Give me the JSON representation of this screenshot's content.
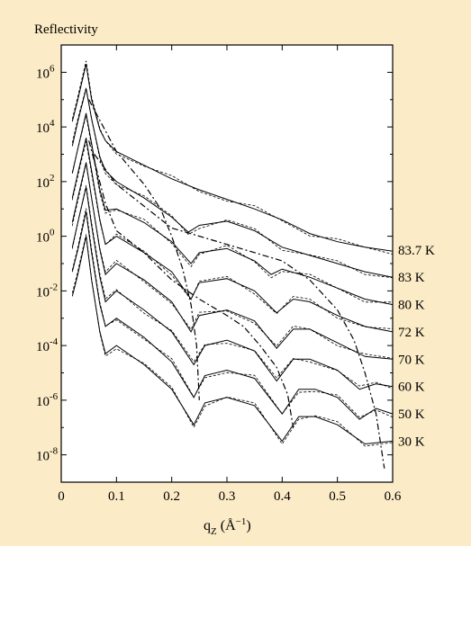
{
  "colors": {
    "panel_background": "#FBEBC6",
    "plot_background": "#FFFFFF",
    "ink": "#000000"
  },
  "chart_data": {
    "type": "line",
    "title": "Reflectivity",
    "xlabel": "q",
    "xlabel_subscript": "Z",
    "xlabel_units": " (Å",
    "xlabel_units_sup": "−1",
    "xlabel_units_close": ")",
    "xlim": [
      0,
      0.6
    ],
    "ylim_log10": [
      -9,
      7
    ],
    "yscale": "log",
    "grid": false,
    "x_ticks": [
      {
        "value": 0,
        "label": "0"
      },
      {
        "value": 0.1,
        "label": "0.1"
      },
      {
        "value": 0.2,
        "label": "0.2"
      },
      {
        "value": 0.3,
        "label": "0.3"
      },
      {
        "value": 0.4,
        "label": "0.4"
      },
      {
        "value": 0.5,
        "label": "0.5"
      },
      {
        "value": 0.6,
        "label": "0.6"
      }
    ],
    "y_ticks": [
      {
        "exp": 6,
        "base": "10",
        "sup": "6"
      },
      {
        "exp": 4,
        "base": "10",
        "sup": "4"
      },
      {
        "exp": 2,
        "base": "10",
        "sup": "2"
      },
      {
        "exp": 0,
        "base": "10",
        "sup": "0"
      },
      {
        "exp": -2,
        "base": "10",
        "sup": "-2"
      },
      {
        "exp": -4,
        "base": "10",
        "sup": "-4"
      },
      {
        "exp": -6,
        "base": "10",
        "sup": "-6"
      },
      {
        "exp": -8,
        "base": "10",
        "sup": "-8"
      }
    ],
    "series": [
      {
        "name": "83.7 K",
        "label_log_y": -0.5,
        "points": [
          [
            0.02,
            4.2
          ],
          [
            0.03,
            5.0
          ],
          [
            0.045,
            6.3
          ],
          [
            0.055,
            5.0
          ],
          [
            0.07,
            3.9
          ],
          [
            0.08,
            3.5
          ],
          [
            0.1,
            3.1
          ],
          [
            0.15,
            2.6
          ],
          [
            0.2,
            2.1
          ],
          [
            0.25,
            1.7
          ],
          [
            0.3,
            1.35
          ],
          [
            0.35,
            1.0
          ],
          [
            0.4,
            0.6
          ],
          [
            0.45,
            0.1
          ],
          [
            0.5,
            -0.2
          ],
          [
            0.55,
            -0.4
          ],
          [
            0.6,
            -0.55
          ]
        ]
      },
      {
        "name": "83 K",
        "label_log_y": -1.5,
        "points": [
          [
            0.02,
            3.3
          ],
          [
            0.03,
            4.2
          ],
          [
            0.045,
            5.4
          ],
          [
            0.055,
            4.3
          ],
          [
            0.07,
            2.9
          ],
          [
            0.08,
            2.4
          ],
          [
            0.1,
            2.0
          ],
          [
            0.15,
            1.4
          ],
          [
            0.2,
            0.7
          ],
          [
            0.23,
            0.15
          ],
          [
            0.25,
            0.4
          ],
          [
            0.3,
            0.55
          ],
          [
            0.35,
            0.2
          ],
          [
            0.4,
            -0.4
          ],
          [
            0.45,
            -0.7
          ],
          [
            0.5,
            -1.0
          ],
          [
            0.55,
            -1.3
          ],
          [
            0.6,
            -1.5
          ]
        ]
      },
      {
        "name": "80 K",
        "label_log_y": -2.5,
        "points": [
          [
            0.02,
            2.3
          ],
          [
            0.03,
            3.2
          ],
          [
            0.045,
            4.5
          ],
          [
            0.055,
            3.4
          ],
          [
            0.07,
            1.7
          ],
          [
            0.08,
            0.95
          ],
          [
            0.1,
            1.0
          ],
          [
            0.15,
            0.5
          ],
          [
            0.2,
            -0.2
          ],
          [
            0.235,
            -1.0
          ],
          [
            0.25,
            -0.6
          ],
          [
            0.3,
            -0.45
          ],
          [
            0.35,
            -0.9
          ],
          [
            0.38,
            -1.4
          ],
          [
            0.4,
            -1.2
          ],
          [
            0.45,
            -1.5
          ],
          [
            0.5,
            -1.9
          ],
          [
            0.55,
            -2.3
          ],
          [
            0.6,
            -2.5
          ]
        ]
      },
      {
        "name": "72 K",
        "label_log_y": -3.5,
        "points": [
          [
            0.02,
            1.4
          ],
          [
            0.03,
            2.3
          ],
          [
            0.045,
            3.6
          ],
          [
            0.055,
            2.4
          ],
          [
            0.07,
            0.6
          ],
          [
            0.08,
            -0.3
          ],
          [
            0.1,
            0.0
          ],
          [
            0.15,
            -0.6
          ],
          [
            0.2,
            -1.3
          ],
          [
            0.235,
            -2.3
          ],
          [
            0.25,
            -1.7
          ],
          [
            0.3,
            -1.55
          ],
          [
            0.35,
            -2.0
          ],
          [
            0.39,
            -2.8
          ],
          [
            0.42,
            -2.3
          ],
          [
            0.45,
            -2.4
          ],
          [
            0.5,
            -2.9
          ],
          [
            0.55,
            -3.3
          ],
          [
            0.6,
            -3.5
          ]
        ]
      },
      {
        "name": "70 K",
        "label_log_y": -4.5,
        "points": [
          [
            0.02,
            0.5
          ],
          [
            0.03,
            1.4
          ],
          [
            0.045,
            2.7
          ],
          [
            0.055,
            1.4
          ],
          [
            0.07,
            -0.5
          ],
          [
            0.08,
            -1.4
          ],
          [
            0.1,
            -1.0
          ],
          [
            0.15,
            -1.6
          ],
          [
            0.2,
            -2.4
          ],
          [
            0.235,
            -3.5
          ],
          [
            0.25,
            -2.9
          ],
          [
            0.3,
            -2.7
          ],
          [
            0.35,
            -3.1
          ],
          [
            0.39,
            -4.1
          ],
          [
            0.42,
            -3.4
          ],
          [
            0.45,
            -3.4
          ],
          [
            0.5,
            -3.9
          ],
          [
            0.55,
            -4.4
          ],
          [
            0.6,
            -4.5
          ]
        ]
      },
      {
        "name": "60 K",
        "label_log_y": -5.5,
        "points": [
          [
            0.02,
            -0.4
          ],
          [
            0.03,
            0.5
          ],
          [
            0.045,
            1.8
          ],
          [
            0.055,
            0.4
          ],
          [
            0.07,
            -1.5
          ],
          [
            0.08,
            -2.4
          ],
          [
            0.1,
            -2.0
          ],
          [
            0.15,
            -2.7
          ],
          [
            0.2,
            -3.5
          ],
          [
            0.24,
            -4.7
          ],
          [
            0.26,
            -4.0
          ],
          [
            0.3,
            -3.8
          ],
          [
            0.35,
            -4.2
          ],
          [
            0.39,
            -5.3
          ],
          [
            0.42,
            -4.5
          ],
          [
            0.45,
            -4.5
          ],
          [
            0.5,
            -4.9
          ],
          [
            0.54,
            -5.6
          ],
          [
            0.57,
            -5.4
          ],
          [
            0.6,
            -5.5
          ]
        ]
      },
      {
        "name": "50 K",
        "label_log_y": -6.5,
        "points": [
          [
            0.02,
            -1.3
          ],
          [
            0.03,
            -0.5
          ],
          [
            0.045,
            0.9
          ],
          [
            0.055,
            -0.6
          ],
          [
            0.07,
            -2.5
          ],
          [
            0.08,
            -3.3
          ],
          [
            0.1,
            -3.0
          ],
          [
            0.15,
            -3.7
          ],
          [
            0.2,
            -4.6
          ],
          [
            0.24,
            -5.9
          ],
          [
            0.26,
            -5.1
          ],
          [
            0.3,
            -4.9
          ],
          [
            0.35,
            -5.2
          ],
          [
            0.4,
            -6.5
          ],
          [
            0.43,
            -5.6
          ],
          [
            0.46,
            -5.6
          ],
          [
            0.5,
            -5.9
          ],
          [
            0.54,
            -6.7
          ],
          [
            0.57,
            -6.3
          ],
          [
            0.6,
            -6.5
          ]
        ]
      },
      {
        "name": "30 K",
        "label_log_y": -7.5,
        "points": [
          [
            0.02,
            -2.2
          ],
          [
            0.03,
            -1.4
          ],
          [
            0.045,
            0.0
          ],
          [
            0.055,
            -1.6
          ],
          [
            0.07,
            -3.5
          ],
          [
            0.08,
            -4.3
          ],
          [
            0.1,
            -4.0
          ],
          [
            0.15,
            -4.7
          ],
          [
            0.2,
            -5.6
          ],
          [
            0.24,
            -6.9
          ],
          [
            0.26,
            -6.1
          ],
          [
            0.3,
            -5.9
          ],
          [
            0.35,
            -6.2
          ],
          [
            0.4,
            -7.5
          ],
          [
            0.43,
            -6.6
          ],
          [
            0.46,
            -6.6
          ],
          [
            0.5,
            -6.9
          ],
          [
            0.55,
            -7.6
          ],
          [
            0.6,
            -7.5
          ]
        ]
      }
    ],
    "dashdot_curves": [
      {
        "points": [
          [
            0.05,
            5.0
          ],
          [
            0.1,
            3.1
          ],
          [
            0.15,
            1.9
          ],
          [
            0.18,
            1.0
          ],
          [
            0.2,
            0.0
          ],
          [
            0.22,
            -1.2
          ],
          [
            0.235,
            -2.5
          ],
          [
            0.245,
            -4.0
          ],
          [
            0.25,
            -6.0
          ]
        ]
      },
      {
        "points": [
          [
            0.05,
            3.5
          ],
          [
            0.08,
            1.2
          ],
          [
            0.1,
            0.2
          ],
          [
            0.15,
            -0.6
          ],
          [
            0.2,
            -1.6
          ],
          [
            0.25,
            -2.3
          ],
          [
            0.3,
            -2.9
          ],
          [
            0.33,
            -3.3
          ],
          [
            0.36,
            -4.0
          ],
          [
            0.39,
            -4.8
          ],
          [
            0.41,
            -5.8
          ],
          [
            0.42,
            -7.0
          ]
        ]
      },
      {
        "points": [
          [
            0.06,
            3.0
          ],
          [
            0.1,
            1.9
          ],
          [
            0.2,
            0.3
          ],
          [
            0.3,
            -0.3
          ],
          [
            0.4,
            -0.9
          ],
          [
            0.45,
            -1.6
          ],
          [
            0.5,
            -2.7
          ],
          [
            0.53,
            -3.8
          ],
          [
            0.55,
            -5.0
          ],
          [
            0.57,
            -6.5
          ],
          [
            0.585,
            -8.5
          ]
        ]
      }
    ]
  }
}
